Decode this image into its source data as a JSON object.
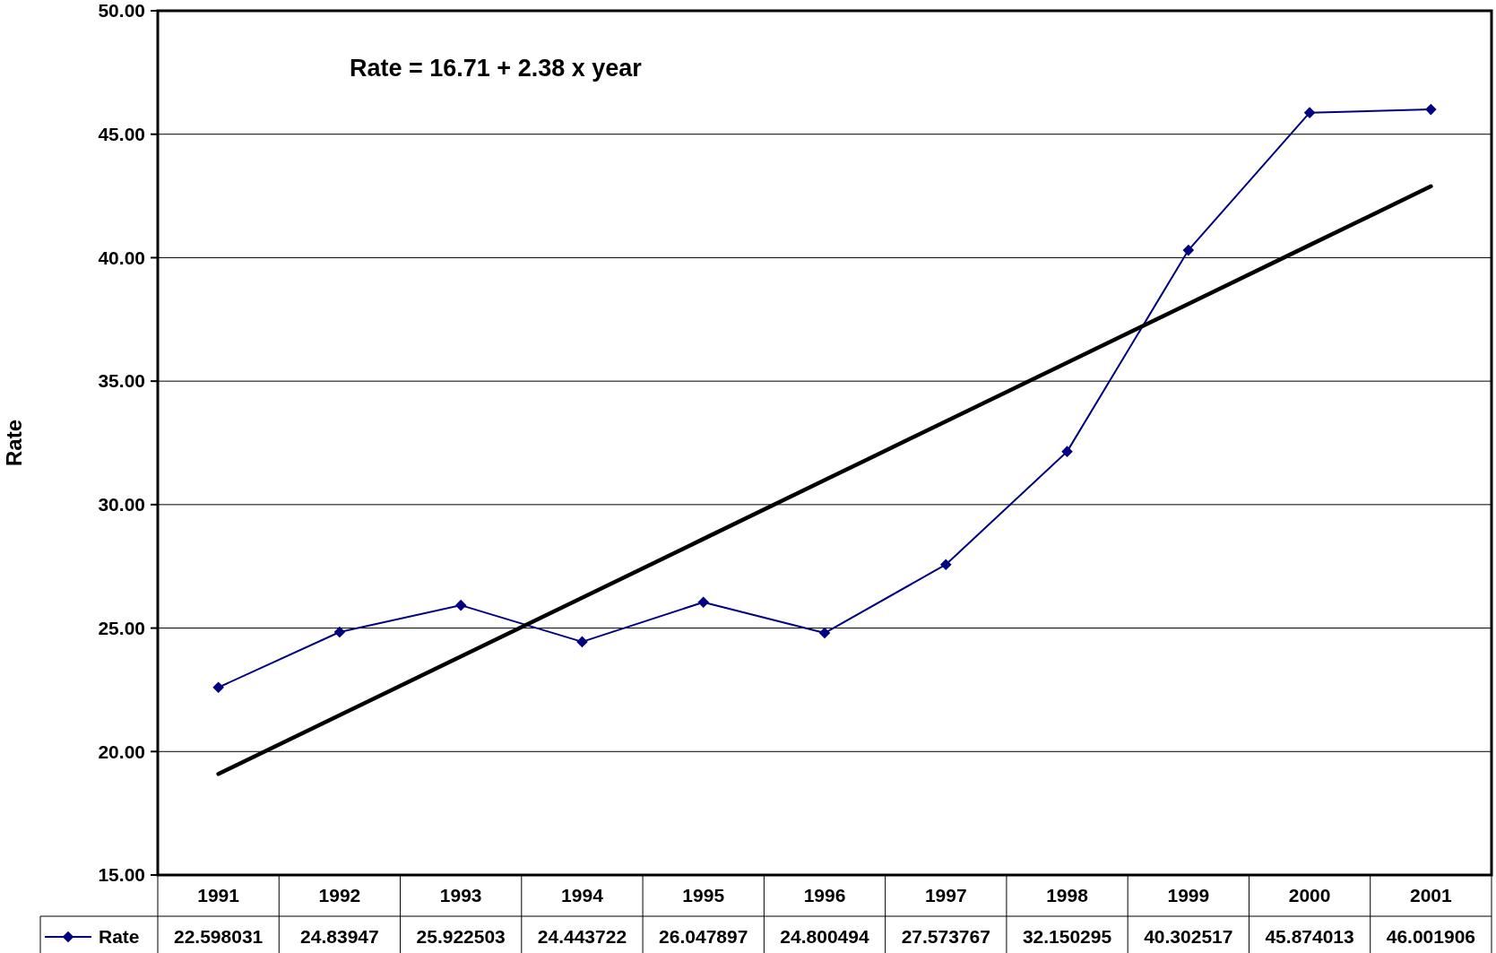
{
  "chart_data": {
    "type": "line",
    "ylabel": "Rate",
    "categories": [
      "1991",
      "1992",
      "1993",
      "1994",
      "1995",
      "1996",
      "1997",
      "1998",
      "1999",
      "2000",
      "2001"
    ],
    "series": [
      {
        "name": "Rate",
        "color": "#000080",
        "marker": "diamond",
        "values": [
          22.598031,
          24.83947,
          25.922503,
          24.443722,
          26.047897,
          24.800494,
          27.573767,
          32.150295,
          40.302517,
          45.874013,
          46.001906
        ],
        "value_labels": [
          "22.598031",
          "24.83947",
          "25.922503",
          "24.443722",
          "26.047897",
          "24.800494",
          "27.573767",
          "32.150295",
          "40.302517",
          "45.874013",
          "46.001906"
        ]
      },
      {
        "type": "line",
        "color": "#000000",
        "marker": "none",
        "values": [
          19.09,
          21.47,
          23.85,
          26.23,
          28.61,
          30.99,
          33.37,
          35.75,
          38.13,
          40.51,
          42.89
        ]
      }
    ],
    "ylim": [
      15,
      50
    ],
    "yticks": [
      {
        "value": 15,
        "label": "15.00"
      },
      {
        "value": 20,
        "label": "20.00"
      },
      {
        "value": 25,
        "label": "25.00"
      },
      {
        "value": 30,
        "label": "30.00"
      },
      {
        "value": 35,
        "label": "35.00"
      },
      {
        "value": 40,
        "label": "40.00"
      },
      {
        "value": 45,
        "label": "45.00"
      },
      {
        "value": 50,
        "label": "50.00"
      }
    ],
    "grid": "y",
    "legend": "bottom",
    "annotations": [
      "Rate = 16.71 + 2.38 x year"
    ]
  }
}
